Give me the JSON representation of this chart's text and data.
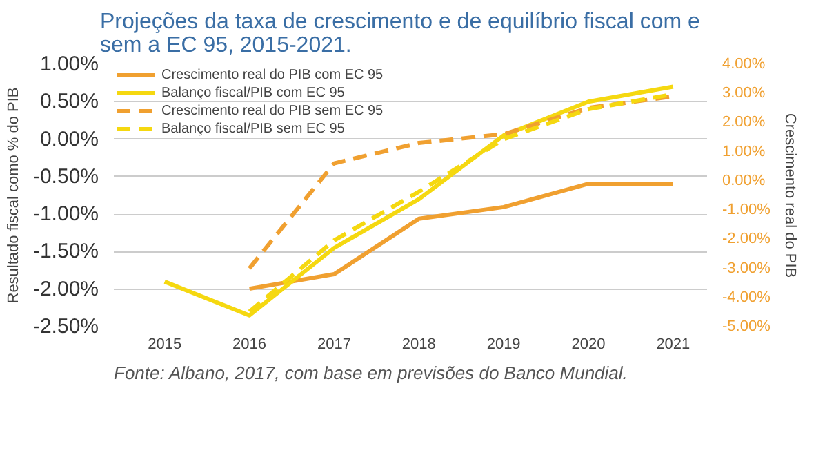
{
  "chart_data": {
    "type": "line",
    "title": "Projeções da taxa de crescimento e de equilíbrio fiscal com e sem a EC 95, 2015-2021.",
    "categories": [
      "2015",
      "2016",
      "2017",
      "2018",
      "2019",
      "2020",
      "2021"
    ],
    "series": [
      {
        "name": "Crescimento real do PIB com EC 95",
        "color": "#f0a030",
        "axis": "y2",
        "line_style": "solid",
        "values": [
          null,
          -3.7,
          -3.2,
          -1.3,
          -0.9,
          -0.1,
          -0.1
        ]
      },
      {
        "name": "Balanço fiscal/PIB com EC 95",
        "color": "#f5d810",
        "line_style": "solid",
        "values": [
          -1.9,
          -2.35,
          -1.45,
          -0.8,
          0.05,
          0.5,
          0.7
        ]
      },
      {
        "name": "Crescimento real do PIB sem EC 95",
        "color": "#f0a030",
        "axis": "y2",
        "line_style": "dashed",
        "values": [
          null,
          -3.0,
          0.6,
          1.3,
          1.6,
          2.5,
          2.9
        ]
      },
      {
        "name": "Balanço fiscal/PIB sem EC 95",
        "color": "#f5d810",
        "line_style": "dashed",
        "values": [
          null,
          -2.3,
          -1.35,
          -0.7,
          0.0,
          0.4,
          0.6
        ]
      }
    ],
    "ylabel": "Resultado fiscal como % do PIB",
    "y2label": "Crescimento real do PIB",
    "ylim": [
      -2.5,
      1.0
    ],
    "yticks": [
      {
        "value": 1.0,
        "label": "1.00%"
      },
      {
        "value": 0.5,
        "label": "0.50%"
      },
      {
        "value": 0.0,
        "label": "0.00%"
      },
      {
        "value": -0.5,
        "label": "-0.50%"
      },
      {
        "value": -1.0,
        "label": "-1.00%"
      },
      {
        "value": -1.5,
        "label": "-1.50%"
      },
      {
        "value": -2.0,
        "label": "-2.00%"
      },
      {
        "value": -2.5,
        "label": "-2.50%"
      }
    ],
    "y2lim": [
      -5,
      4
    ],
    "y2ticks": [
      {
        "value": 4,
        "label": "4.00%"
      },
      {
        "value": 3,
        "label": "3.00%"
      },
      {
        "value": 2,
        "label": "2.00%"
      },
      {
        "value": 1,
        "label": "1.00%"
      },
      {
        "value": 0,
        "label": "0.00%"
      },
      {
        "value": -1,
        "label": "-1.00%"
      },
      {
        "value": -2,
        "label": "-2.00%"
      },
      {
        "value": -3,
        "label": "-3.00%"
      },
      {
        "value": -4,
        "label": "-4.00%"
      },
      {
        "value": -5,
        "label": "-5.00%"
      }
    ],
    "grid": "y",
    "legend": "top",
    "annotations": [
      "Fonte: Albano, 2017, com base em previsões do Banco Mundial."
    ]
  }
}
